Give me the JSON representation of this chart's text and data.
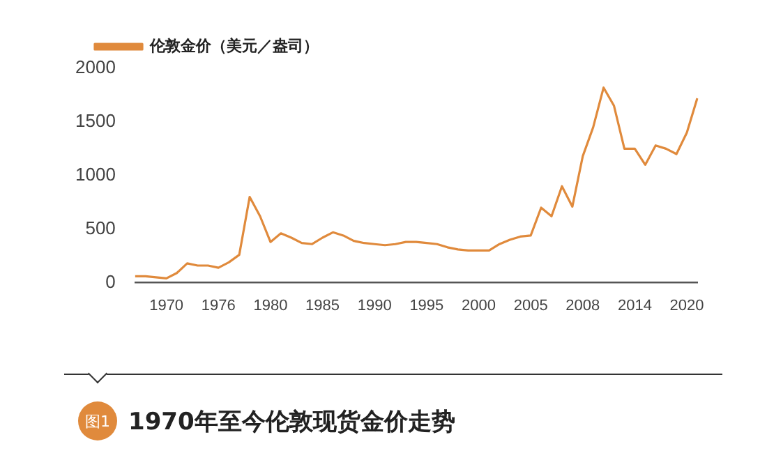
{
  "chart_data": {
    "type": "line",
    "title": "1970年至今伦敦现货金价走势",
    "annotations": [
      "图1"
    ],
    "categories": [
      null,
      null,
      null,
      "1970",
      null,
      null,
      null,
      null,
      "1976",
      null,
      null,
      null,
      null,
      "1980",
      null,
      null,
      null,
      null,
      "1985",
      null,
      null,
      null,
      null,
      "1990",
      null,
      null,
      null,
      null,
      "1995",
      null,
      null,
      null,
      null,
      "2000",
      null,
      null,
      null,
      null,
      "2005",
      null,
      null,
      null,
      null,
      "2008",
      null,
      null,
      null,
      null,
      "2014",
      null,
      null,
      null,
      null,
      "2020",
      null
    ],
    "series": [
      {
        "name": "伦敦金价（美元／盎司）",
        "color": "#e08a3c",
        "values": [
          60,
          60,
          50,
          40,
          90,
          180,
          160,
          160,
          140,
          190,
          260,
          800,
          620,
          380,
          460,
          420,
          370,
          360,
          420,
          470,
          440,
          390,
          370,
          360,
          350,
          360,
          380,
          380,
          370,
          360,
          330,
          310,
          300,
          300,
          300,
          360,
          400,
          430,
          440,
          700,
          620,
          900,
          710,
          1180,
          1450,
          1820,
          1650,
          1250,
          1250,
          1100,
          1280,
          1250,
          1200,
          1400,
          1720
        ]
      }
    ],
    "ylim": [
      0,
      2000
    ],
    "yticks": [
      0,
      500,
      1000,
      1500,
      2000
    ],
    "grid": false,
    "legend": "top left",
    "marker": "none",
    "line_style": "solid"
  }
}
